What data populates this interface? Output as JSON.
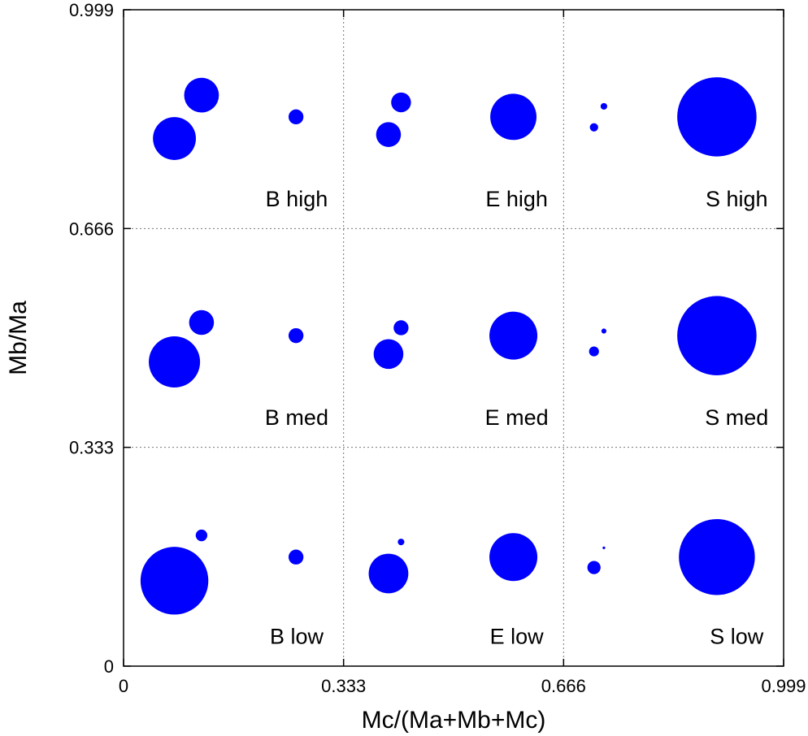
{
  "chart_data": {
    "type": "scatter",
    "variant": "bubble",
    "xlabel": "Mc/(Ma+Mb+Mc)",
    "ylabel": "Mb/Ma",
    "xlim": [
      0,
      0.999
    ],
    "ylim": [
      0,
      0.999
    ],
    "xticks": [
      "0",
      "0.333",
      "0.666",
      "0.999"
    ],
    "yticks": [
      "0",
      "0.333",
      "0.666",
      "0.999"
    ],
    "grid": true,
    "marker_color": "#0000FF",
    "panel_labels": [
      {
        "text": "B high",
        "x": 0.262,
        "y": 0.7
      },
      {
        "text": "E high",
        "x": 0.595,
        "y": 0.7
      },
      {
        "text": "S high",
        "x": 0.928,
        "y": 0.7
      },
      {
        "text": "B med",
        "x": 0.262,
        "y": 0.367
      },
      {
        "text": "E med",
        "x": 0.595,
        "y": 0.367
      },
      {
        "text": "S med",
        "x": 0.928,
        "y": 0.367
      },
      {
        "text": "B low",
        "x": 0.262,
        "y": 0.034
      },
      {
        "text": "E low",
        "x": 0.595,
        "y": 0.034
      },
      {
        "text": "S low",
        "x": 0.928,
        "y": 0.034
      }
    ],
    "points": [
      {
        "group": "B high",
        "x": 0.077,
        "y": 0.803,
        "r": 0.0325
      },
      {
        "group": "B high",
        "x": 0.118,
        "y": 0.869,
        "r": 0.0263
      },
      {
        "group": "B high",
        "x": 0.261,
        "y": 0.836,
        "r": 0.0113
      },
      {
        "group": "E high",
        "x": 0.401,
        "y": 0.809,
        "r": 0.0188
      },
      {
        "group": "E high",
        "x": 0.42,
        "y": 0.858,
        "r": 0.015
      },
      {
        "group": "E high",
        "x": 0.59,
        "y": 0.836,
        "r": 0.035
      },
      {
        "group": "S high",
        "x": 0.712,
        "y": 0.82,
        "r": 0.0063
      },
      {
        "group": "S high",
        "x": 0.727,
        "y": 0.852,
        "r": 0.005
      },
      {
        "group": "S high",
        "x": 0.898,
        "y": 0.836,
        "r": 0.06
      },
      {
        "group": "B med",
        "x": 0.077,
        "y": 0.463,
        "r": 0.0388
      },
      {
        "group": "B med",
        "x": 0.118,
        "y": 0.523,
        "r": 0.0188
      },
      {
        "group": "B med",
        "x": 0.261,
        "y": 0.503,
        "r": 0.0113
      },
      {
        "group": "E med",
        "x": 0.401,
        "y": 0.475,
        "r": 0.0225
      },
      {
        "group": "E med",
        "x": 0.42,
        "y": 0.515,
        "r": 0.0113
      },
      {
        "group": "E med",
        "x": 0.59,
        "y": 0.503,
        "r": 0.0363
      },
      {
        "group": "S med",
        "x": 0.712,
        "y": 0.479,
        "r": 0.0075
      },
      {
        "group": "S med",
        "x": 0.727,
        "y": 0.51,
        "r": 0.0038
      },
      {
        "group": "S med",
        "x": 0.898,
        "y": 0.503,
        "r": 0.06
      },
      {
        "group": "B low",
        "x": 0.077,
        "y": 0.13,
        "r": 0.0513
      },
      {
        "group": "B low",
        "x": 0.118,
        "y": 0.199,
        "r": 0.0088
      },
      {
        "group": "B low",
        "x": 0.261,
        "y": 0.166,
        "r": 0.0113
      },
      {
        "group": "E low",
        "x": 0.401,
        "y": 0.141,
        "r": 0.03
      },
      {
        "group": "E low",
        "x": 0.42,
        "y": 0.189,
        "r": 0.005
      },
      {
        "group": "E low",
        "x": 0.59,
        "y": 0.166,
        "r": 0.0363
      },
      {
        "group": "S low",
        "x": 0.712,
        "y": 0.15,
        "r": 0.01
      },
      {
        "group": "S low",
        "x": 0.727,
        "y": 0.18,
        "r": 0.002
      },
      {
        "group": "S low",
        "x": 0.898,
        "y": 0.166,
        "r": 0.0575
      }
    ]
  }
}
